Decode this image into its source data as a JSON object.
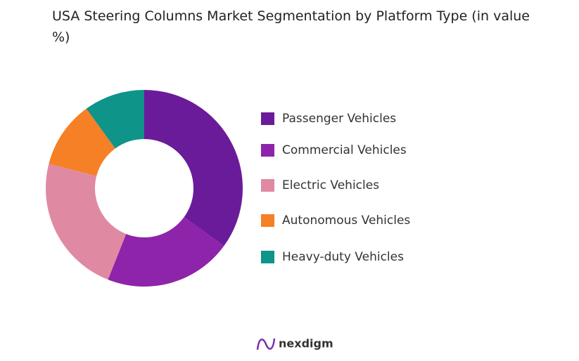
{
  "chart_data": {
    "type": "donut",
    "title": "USA Steering Columns Market Segmentation by Platform Type (in value %)",
    "categories": [
      "Passenger Vehicles",
      "Commercial Vehicles",
      "Electric Vehicles",
      "Autonomous Vehicles",
      "Heavy-duty Vehicles"
    ],
    "values": [
      35,
      21,
      23,
      11,
      10
    ],
    "colors": [
      "#6a1b9a",
      "#8e24aa",
      "#df8aa2",
      "#f58025",
      "#0e9488"
    ],
    "legend": "right"
  },
  "logo": "nexdigm"
}
